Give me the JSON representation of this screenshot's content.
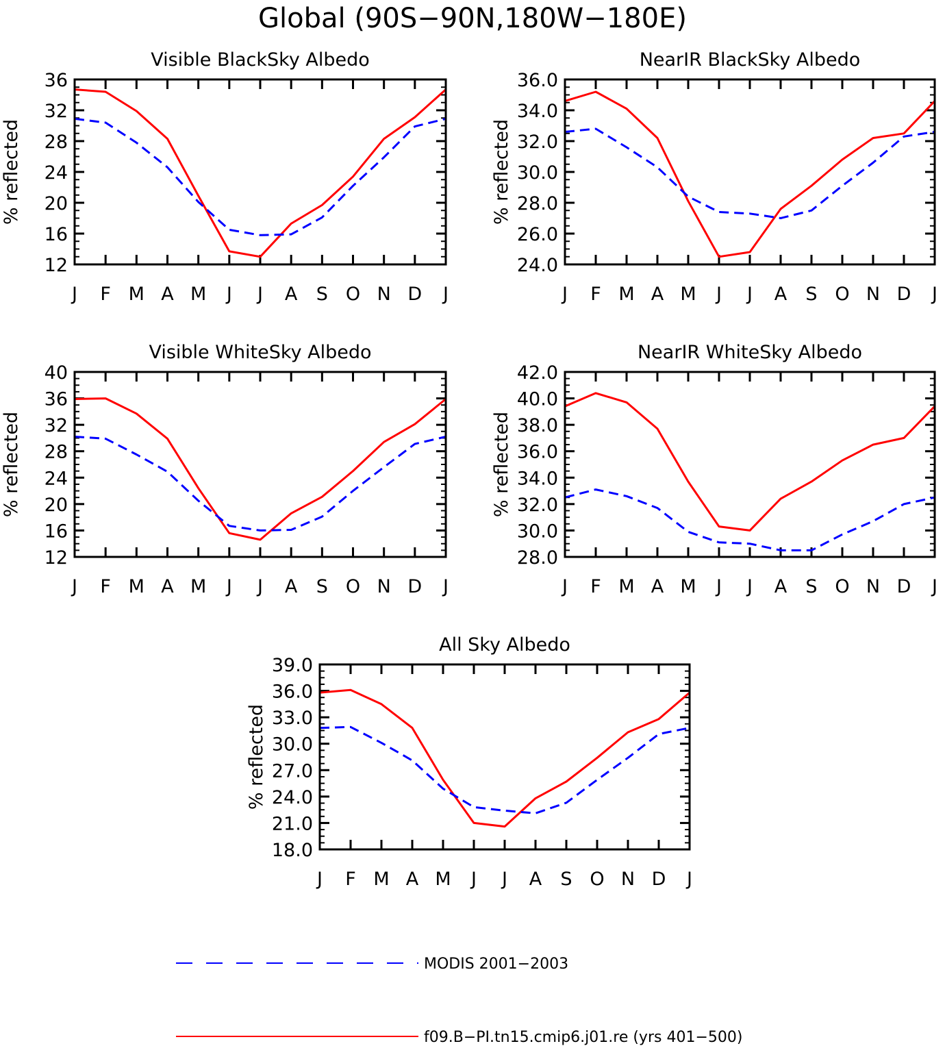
{
  "figure_title": "Global (90S−90N,180W−180E)",
  "legend": {
    "entries": [
      {
        "label": "MODIS 2001−2003",
        "color": "#0000ff",
        "style": "dashed"
      },
      {
        "label": "f09.B−PI.tn15.cmip6.j01.re (yrs 401−500)",
        "color": "#ff0000",
        "style": "solid"
      }
    ]
  },
  "chart_data": [
    {
      "type": "line",
      "title": "Visible BlackSky Albedo",
      "ylabel": "% reflected",
      "categories": [
        "J",
        "F",
        "M",
        "A",
        "M",
        "J",
        "J",
        "A",
        "S",
        "O",
        "N",
        "D",
        "J"
      ],
      "ylim": [
        12,
        36
      ],
      "yticks": [
        12,
        16,
        20,
        24,
        28,
        32,
        36
      ],
      "ytick_labels": [
        "12",
        "16",
        "20",
        "24",
        "28",
        "32",
        "36"
      ],
      "series": [
        {
          "color": "#ff0000",
          "style": "solid",
          "values": [
            34.7,
            34.4,
            31.9,
            28.3,
            20.9,
            13.7,
            13.0,
            17.3,
            19.7,
            23.4,
            28.3,
            31.1,
            34.7
          ]
        },
        {
          "color": "#0000ff",
          "style": "dashed",
          "values": [
            30.9,
            30.4,
            27.8,
            24.6,
            20.1,
            16.5,
            15.8,
            15.9,
            18.1,
            22.2,
            25.9,
            29.9,
            30.9
          ]
        }
      ]
    },
    {
      "type": "line",
      "title": "NearIR BlackSky Albedo",
      "ylabel": "% reflected",
      "categories": [
        "J",
        "F",
        "M",
        "A",
        "M",
        "J",
        "J",
        "A",
        "S",
        "O",
        "N",
        "D",
        "J"
      ],
      "ylim": [
        24.0,
        36.0
      ],
      "yticks": [
        24,
        26,
        28,
        30,
        32,
        34,
        36
      ],
      "ytick_labels": [
        "24.0",
        "26.0",
        "28.0",
        "30.0",
        "32.0",
        "34.0",
        "36.0"
      ],
      "series": [
        {
          "color": "#ff0000",
          "style": "solid",
          "values": [
            34.6,
            35.2,
            34.1,
            32.2,
            28.1,
            24.5,
            24.8,
            27.6,
            29.1,
            30.8,
            32.2,
            32.5,
            34.6
          ]
        },
        {
          "color": "#0000ff",
          "style": "dashed",
          "values": [
            32.6,
            32.8,
            31.6,
            30.3,
            28.4,
            27.4,
            27.3,
            27.0,
            27.5,
            29.1,
            30.6,
            32.3,
            32.6
          ]
        }
      ]
    },
    {
      "type": "line",
      "title": "Visible WhiteSky Albedo",
      "ylabel": "% reflected",
      "categories": [
        "J",
        "F",
        "M",
        "A",
        "M",
        "J",
        "J",
        "A",
        "S",
        "O",
        "N",
        "D",
        "J"
      ],
      "ylim": [
        12,
        40
      ],
      "yticks": [
        12,
        16,
        20,
        24,
        28,
        32,
        36,
        40
      ],
      "ytick_labels": [
        "12",
        "16",
        "20",
        "24",
        "28",
        "32",
        "36",
        "40"
      ],
      "series": [
        {
          "color": "#ff0000",
          "style": "solid",
          "values": [
            35.9,
            36.0,
            33.7,
            29.9,
            22.4,
            15.6,
            14.6,
            18.6,
            21.1,
            25.0,
            29.4,
            32.1,
            35.9
          ]
        },
        {
          "color": "#0000ff",
          "style": "dashed",
          "values": [
            30.2,
            29.9,
            27.5,
            24.9,
            20.5,
            16.7,
            16.0,
            16.1,
            18.1,
            22.0,
            25.6,
            29.1,
            30.2
          ]
        }
      ]
    },
    {
      "type": "line",
      "title": "NearIR WhiteSky Albedo",
      "ylabel": "% reflected",
      "categories": [
        "J",
        "F",
        "M",
        "A",
        "M",
        "J",
        "J",
        "A",
        "S",
        "O",
        "N",
        "D",
        "J"
      ],
      "ylim": [
        28.0,
        42.0
      ],
      "yticks": [
        28,
        30,
        32,
        34,
        36,
        38,
        40,
        42
      ],
      "ytick_labels": [
        "28.0",
        "30.0",
        "32.0",
        "34.0",
        "36.0",
        "38.0",
        "40.0",
        "42.0"
      ],
      "series": [
        {
          "color": "#ff0000",
          "style": "solid",
          "values": [
            39.4,
            40.4,
            39.7,
            37.7,
            33.7,
            30.3,
            30.0,
            32.4,
            33.7,
            35.3,
            36.5,
            37.0,
            39.4
          ]
        },
        {
          "color": "#0000ff",
          "style": "dashed",
          "values": [
            32.5,
            33.1,
            32.6,
            31.7,
            29.9,
            29.1,
            29.0,
            28.5,
            28.5,
            29.7,
            30.7,
            32.0,
            32.5
          ]
        }
      ]
    },
    {
      "type": "line",
      "title": "All Sky Albedo",
      "ylabel": "% reflected",
      "categories": [
        "J",
        "F",
        "M",
        "A",
        "M",
        "J",
        "J",
        "A",
        "S",
        "O",
        "N",
        "D",
        "J"
      ],
      "ylim": [
        18.0,
        39.0
      ],
      "yticks": [
        18,
        21,
        24,
        27,
        30,
        33,
        36,
        39
      ],
      "ytick_labels": [
        "18.0",
        "21.0",
        "24.0",
        "27.0",
        "30.0",
        "33.0",
        "36.0",
        "39.0"
      ],
      "series": [
        {
          "color": "#ff0000",
          "style": "solid",
          "values": [
            35.8,
            36.1,
            34.5,
            31.8,
            25.9,
            21.0,
            20.6,
            23.8,
            25.7,
            28.4,
            31.3,
            32.8,
            35.8
          ]
        },
        {
          "color": "#0000ff",
          "style": "dashed",
          "values": [
            31.8,
            31.9,
            30.1,
            28.1,
            24.9,
            22.8,
            22.4,
            22.1,
            23.3,
            25.9,
            28.4,
            31.1,
            31.8
          ]
        }
      ]
    }
  ]
}
